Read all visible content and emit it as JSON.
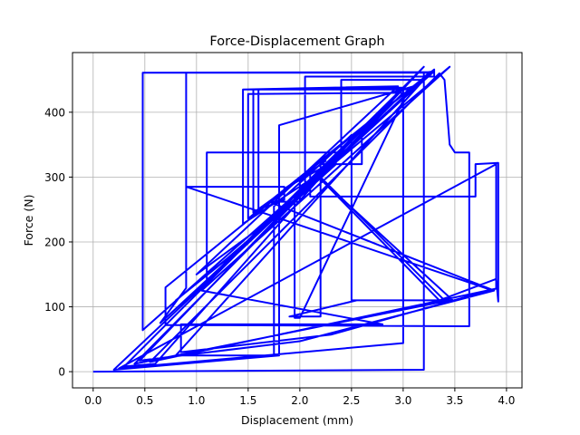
{
  "chart_data": {
    "type": "line",
    "title": "Force-Displacement Graph",
    "xlabel": "Displacement (mm)",
    "ylabel": "Force (N)",
    "xlim": [
      -0.2,
      4.15
    ],
    "ylim": [
      -25,
      492
    ],
    "xticks": [
      0.0,
      0.5,
      1.0,
      1.5,
      2.0,
      2.5,
      3.0,
      3.5,
      4.0
    ],
    "xtick_labels": [
      "0.0",
      "0.5",
      "1.0",
      "1.5",
      "2.0",
      "2.5",
      "3.0",
      "3.5",
      "4.0"
    ],
    "yticks": [
      0,
      100,
      200,
      300,
      400
    ],
    "ytick_labels": [
      "0",
      "100",
      "200",
      "300",
      "400"
    ],
    "grid": true,
    "line_color": "#0000ff",
    "series": [
      {
        "points": [
          [
            0.0,
            0.0
          ],
          [
            3.2,
            3.0
          ],
          [
            3.2,
            461.0
          ],
          [
            3.3,
            463.0
          ],
          [
            0.48,
            64.0
          ],
          [
            0.48,
            461.0
          ],
          [
            3.28,
            462.0
          ],
          [
            0.65,
            75.0
          ],
          [
            0.9,
            129.0
          ],
          [
            0.9,
            461.0
          ],
          [
            3.25,
            461.0
          ],
          [
            0.2,
            3.0
          ],
          [
            1.8,
            25.0
          ],
          [
            1.8,
            380.0
          ],
          [
            3.1,
            440.0
          ],
          [
            0.7,
            130.0
          ],
          [
            0.7,
            72.0
          ],
          [
            3.64,
            70.0
          ],
          [
            3.64,
            338.0
          ],
          [
            3.5,
            338.0
          ],
          [
            3.45,
            350.0
          ],
          [
            3.4,
            450.0
          ],
          [
            3.35,
            460.0
          ],
          [
            0.55,
            15.0
          ],
          [
            3.9,
            128.0
          ],
          [
            3.9,
            320.0
          ],
          [
            0.25,
            5.0
          ],
          [
            3.0,
            44.0
          ],
          [
            3.0,
            438.0
          ],
          [
            1.1,
            140.0
          ],
          [
            1.1,
            338.0
          ],
          [
            2.4,
            338.0
          ],
          [
            2.4,
            450.0
          ],
          [
            3.2,
            450.0
          ],
          [
            0.8,
            25.0
          ],
          [
            1.75,
            25.0
          ],
          [
            1.75,
            255.0
          ],
          [
            2.2,
            320.0
          ],
          [
            2.6,
            320.0
          ],
          [
            2.6,
            375.0
          ],
          [
            2.05,
            285.0
          ],
          [
            2.05,
            455.0
          ],
          [
            3.3,
            455.0
          ],
          [
            3.3,
            466.0
          ],
          [
            1.5,
            236.0
          ],
          [
            1.5,
            428.0
          ],
          [
            3.0,
            430.0
          ],
          [
            0.4,
            12.0
          ],
          [
            3.45,
            110.0
          ],
          [
            2.5,
            110.0
          ],
          [
            2.5,
            365.0
          ],
          [
            2.1,
            305.0
          ],
          [
            2.1,
            270.0
          ],
          [
            3.7,
            270.0
          ],
          [
            3.7,
            320.0
          ],
          [
            3.92,
            322.0
          ],
          [
            3.92,
            108.0
          ],
          [
            3.9,
            143.0
          ],
          [
            3.35,
            110.0
          ],
          [
            2.2,
            297.0
          ],
          [
            3.48,
            110.0
          ],
          [
            2.55,
            110.0
          ],
          [
            1.9,
            85.0
          ],
          [
            2.2,
            85.0
          ],
          [
            2.2,
            325.0
          ],
          [
            2.25,
            325.0
          ],
          [
            1.55,
            245.0
          ],
          [
            1.55,
            435.0
          ],
          [
            3.05,
            435.0
          ],
          [
            2.0,
            83.0
          ],
          [
            1.95,
            83.0
          ],
          [
            1.95,
            270.0
          ],
          [
            3.45,
            470.0
          ],
          [
            1.05,
            125.0
          ],
          [
            2.8,
            73.0
          ],
          [
            0.85,
            73.0
          ],
          [
            0.85,
            30.0
          ],
          [
            2.3,
            57.0
          ],
          [
            3.85,
            126.0
          ],
          [
            0.9,
            285.0
          ],
          [
            1.85,
            285.0
          ],
          [
            1.85,
            265.0
          ],
          [
            1.6,
            250.0
          ],
          [
            1.6,
            435.0
          ],
          [
            3.0,
            438.0
          ],
          [
            0.45,
            17.0
          ],
          [
            2.0,
            47.0
          ],
          [
            3.88,
            125.0
          ],
          [
            1.7,
            262.0
          ],
          [
            2.0,
            262.0
          ],
          [
            2.0,
            298.0
          ],
          [
            1.85,
            282.0
          ],
          [
            2.3,
            322.0
          ],
          [
            2.35,
            322.0
          ],
          [
            1.45,
            228.0
          ],
          [
            1.45,
            435.0
          ],
          [
            2.95,
            440.0
          ],
          [
            1.0,
            150.0
          ],
          [
            1.9,
            255.0
          ],
          [
            2.35,
            320.0
          ],
          [
            1.3,
            175.0
          ],
          [
            0.8,
            110.0
          ],
          [
            1.5,
            200.0
          ],
          [
            2.2,
            300.0
          ],
          [
            3.2,
            470.0
          ],
          [
            0.3,
            8.0
          ],
          [
            0.6,
            12.0
          ],
          [
            2.2,
            300.0
          ],
          [
            3.4,
            110.0
          ],
          [
            3.15,
            110.0
          ]
        ]
      }
    ]
  }
}
